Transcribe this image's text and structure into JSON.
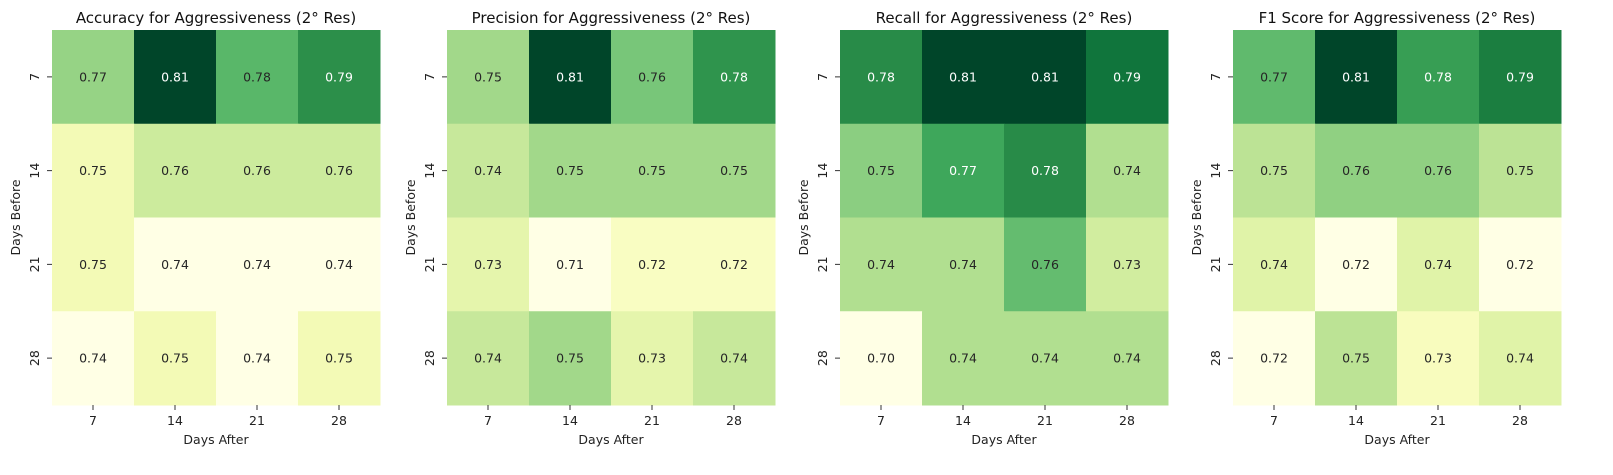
{
  "chart_data": [
    {
      "type": "heatmap",
      "title": "Accuracy for Aggressiveness (2° Res)",
      "xlabel": "Days After",
      "ylabel": "Days Before",
      "x_categories": [
        "7",
        "14",
        "21",
        "28"
      ],
      "y_categories": [
        "7",
        "14",
        "21",
        "28"
      ],
      "values": [
        [
          0.77,
          0.81,
          0.78,
          0.79
        ],
        [
          0.75,
          0.76,
          0.76,
          0.76
        ],
        [
          0.75,
          0.74,
          0.74,
          0.74
        ],
        [
          0.74,
          0.75,
          0.74,
          0.75
        ]
      ],
      "labels": [
        [
          "0.77",
          "0.81",
          "0.78",
          "0.79"
        ],
        [
          "0.75",
          "0.76",
          "0.76",
          "0.76"
        ],
        [
          "0.75",
          "0.74",
          "0.74",
          "0.74"
        ],
        [
          "0.74",
          "0.75",
          "0.74",
          "0.75"
        ]
      ],
      "colormap": "YlGn",
      "colorbar": false
    },
    {
      "type": "heatmap",
      "title": "Precision for Aggressiveness (2° Res)",
      "xlabel": "Days After",
      "ylabel": "Days Before",
      "x_categories": [
        "7",
        "14",
        "21",
        "28"
      ],
      "y_categories": [
        "7",
        "14",
        "21",
        "28"
      ],
      "values": [
        [
          0.75,
          0.81,
          0.76,
          0.78
        ],
        [
          0.74,
          0.75,
          0.75,
          0.75
        ],
        [
          0.73,
          0.71,
          0.72,
          0.72
        ],
        [
          0.74,
          0.75,
          0.73,
          0.74
        ]
      ],
      "labels": [
        [
          "0.75",
          "0.81",
          "0.76",
          "0.78"
        ],
        [
          "0.74",
          "0.75",
          "0.75",
          "0.75"
        ],
        [
          "0.73",
          "0.71",
          "0.72",
          "0.72"
        ],
        [
          "0.74",
          "0.75",
          "0.73",
          "0.74"
        ]
      ],
      "colormap": "YlGn",
      "colorbar": false
    },
    {
      "type": "heatmap",
      "title": "Recall for Aggressiveness (2° Res)",
      "xlabel": "Days After",
      "ylabel": "Days Before",
      "x_categories": [
        "7",
        "14",
        "21",
        "28"
      ],
      "y_categories": [
        "7",
        "14",
        "21",
        "28"
      ],
      "values": [
        [
          0.78,
          0.81,
          0.81,
          0.79
        ],
        [
          0.75,
          0.77,
          0.78,
          0.74
        ],
        [
          0.74,
          0.74,
          0.76,
          0.73
        ],
        [
          0.7,
          0.74,
          0.74,
          0.74
        ]
      ],
      "labels": [
        [
          "0.78",
          "0.81",
          "0.81",
          "0.79"
        ],
        [
          "0.75",
          "0.77",
          "0.78",
          "0.74"
        ],
        [
          "0.74",
          "0.74",
          "0.76",
          "0.73"
        ],
        [
          "0.70",
          "0.74",
          "0.74",
          "0.74"
        ]
      ],
      "colormap": "YlGn",
      "colorbar": false
    },
    {
      "type": "heatmap",
      "title": "F1 Score for Aggressiveness (2° Res)",
      "xlabel": "Days After",
      "ylabel": "Days Before",
      "x_categories": [
        "7",
        "14",
        "21",
        "28"
      ],
      "y_categories": [
        "7",
        "14",
        "21",
        "28"
      ],
      "values": [
        [
          0.77,
          0.81,
          0.78,
          0.79
        ],
        [
          0.75,
          0.76,
          0.76,
          0.75
        ],
        [
          0.74,
          0.72,
          0.74,
          0.72
        ],
        [
          0.72,
          0.75,
          0.73,
          0.74
        ]
      ],
      "labels": [
        [
          "0.77",
          "0.81",
          "0.78",
          "0.79"
        ],
        [
          "0.75",
          "0.76",
          "0.76",
          "0.75"
        ],
        [
          "0.74",
          "0.72",
          "0.74",
          "0.72"
        ],
        [
          "0.72",
          "0.75",
          "0.73",
          "0.74"
        ]
      ],
      "colormap": "YlGn",
      "colorbar": false
    }
  ]
}
